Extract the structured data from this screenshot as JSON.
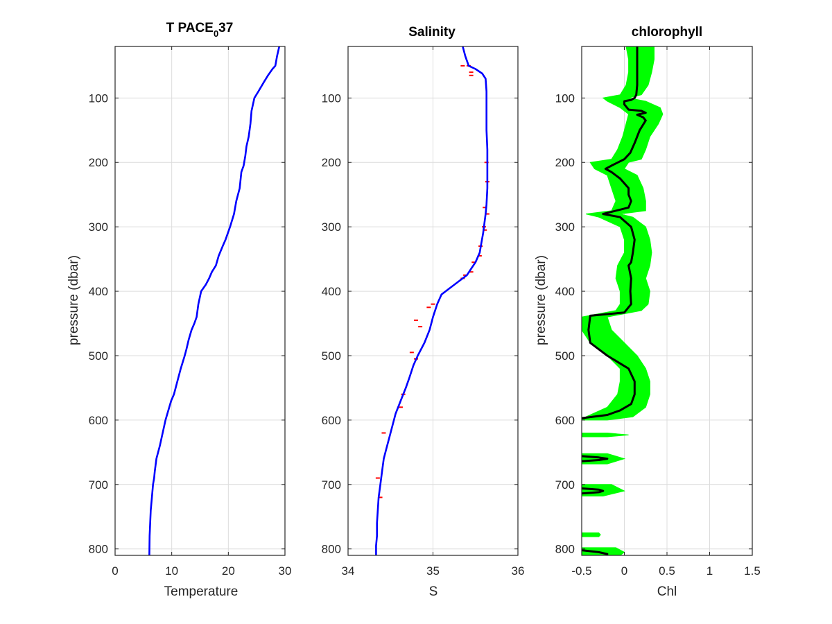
{
  "colors": {
    "profile": "#0000ff",
    "raw": "#00ff00",
    "spike": "#ff0000",
    "smoothed": "#000000",
    "grid": "#dcdcdc",
    "axis": "#262626"
  },
  "chart_data": [
    {
      "type": "line",
      "title_main": "T PACE",
      "title_sub": "0",
      "title_end": "37",
      "xlabel": "Temperature",
      "ylabel": "pressure (dbar)",
      "xlim": [
        0,
        30
      ],
      "ylim": [
        20,
        810
      ],
      "y_reversed": true,
      "grid": true,
      "xticks": [
        "0",
        "10",
        "20",
        "30"
      ],
      "yticks": [
        "100",
        "200",
        "300",
        "400",
        "500",
        "600",
        "700",
        "800"
      ],
      "series": [
        {
          "style": "line",
          "x": [
            29,
            28.6,
            28.3,
            27.8,
            27,
            26.3,
            25.3,
            24.6,
            24.1,
            23.9,
            23.6,
            23.2,
            23.0,
            22.7,
            22.3,
            22,
            21.4,
            21,
            20.3,
            19.5,
            19,
            18.3,
            17.8,
            17.1,
            16.6,
            16,
            15.2,
            14.7,
            14.4,
            14,
            13.5,
            13,
            12.6,
            12.3,
            11.6,
            11,
            10.4,
            9.9,
            9.4,
            8.9,
            8.4,
            7.9,
            7.3,
            7.0,
            6.9,
            6.7,
            6.5,
            6.3,
            6.2,
            6.1,
            6.05
          ],
          "y": [
            20,
            35,
            50,
            55,
            65,
            75,
            90,
            100,
            120,
            140,
            160,
            175,
            190,
            205,
            215,
            240,
            260,
            280,
            300,
            320,
            330,
            345,
            360,
            370,
            380,
            390,
            400,
            420,
            440,
            450,
            460,
            475,
            490,
            500,
            520,
            540,
            560,
            570,
            585,
            600,
            620,
            640,
            660,
            680,
            690,
            700,
            720,
            740,
            760,
            780,
            810
          ]
        }
      ]
    },
    {
      "type": "line",
      "title": "Salinity",
      "xlabel": "S",
      "ylabel": "",
      "xlim": [
        34,
        36
      ],
      "ylim": [
        20,
        810
      ],
      "y_reversed": true,
      "grid": true,
      "xticks": [
        "34",
        "35",
        "36"
      ],
      "yticks": [
        "100",
        "200",
        "300",
        "400",
        "500",
        "600",
        "700",
        "800"
      ],
      "series": [
        {
          "style": "spikes",
          "x": [
            35.35,
            35.42,
            35.45,
            35.45,
            35.63,
            35.64,
            35.61,
            35.64,
            35.6,
            35.61,
            35.56,
            35.55,
            35.48,
            35.45,
            35.38,
            35.35,
            35.0,
            34.95,
            34.8,
            34.85,
            34.75,
            34.8,
            34.65,
            34.62,
            34.42,
            34.35,
            34.38
          ],
          "y": [
            50,
            50,
            60,
            65,
            200,
            230,
            270,
            280,
            300,
            305,
            330,
            345,
            355,
            370,
            375,
            380,
            420,
            425,
            445,
            455,
            495,
            505,
            560,
            580,
            620,
            690,
            720
          ]
        },
        {
          "style": "line",
          "x": [
            35.35,
            35.38,
            35.42,
            35.5,
            35.58,
            35.62,
            35.63,
            35.63,
            35.63,
            35.64,
            35.64,
            35.64,
            35.63,
            35.62,
            35.6,
            35.59,
            35.57,
            35.55,
            35.5,
            35.45,
            35.4,
            35.3,
            35.2,
            35.1,
            35.05,
            35.0,
            34.96,
            34.9,
            34.82,
            34.77,
            34.72,
            34.68,
            34.62,
            34.56,
            34.52,
            34.48,
            34.45,
            34.42,
            34.4,
            34.38,
            34.36,
            34.35,
            34.34,
            34.34,
            34.33,
            34.33
          ],
          "y": [
            20,
            35,
            50,
            55,
            62,
            70,
            90,
            120,
            150,
            180,
            210,
            240,
            265,
            280,
            300,
            310,
            325,
            340,
            355,
            365,
            375,
            385,
            395,
            405,
            420,
            440,
            460,
            480,
            500,
            515,
            535,
            550,
            570,
            590,
            610,
            630,
            645,
            660,
            680,
            700,
            720,
            740,
            760,
            780,
            795,
            810
          ]
        }
      ]
    },
    {
      "type": "line",
      "title": "chlorophyll",
      "xlabel": "Chl",
      "ylabel": "pressure (dbar)",
      "xlim": [
        -0.5,
        1.5
      ],
      "ylim": [
        20,
        810
      ],
      "y_reversed": true,
      "grid": true,
      "xticks": [
        "-0.5",
        "0",
        "0.5",
        "1",
        "1.5"
      ],
      "yticks": [
        "100",
        "200",
        "300",
        "400",
        "500",
        "600",
        "700",
        "800"
      ],
      "series": [
        {
          "style": "band",
          "y": [
            20,
            40,
            60,
            80,
            95,
            100,
            105,
            115,
            125,
            140,
            160,
            180,
            195,
            200,
            210,
            220,
            240,
            260,
            275,
            280,
            285,
            300,
            320,
            340,
            360,
            380,
            400,
            420,
            430,
            440,
            460,
            480,
            500,
            520,
            540,
            560,
            580,
            595,
            600
          ],
          "x_low": [
            0.02,
            0.05,
            0.05,
            0.02,
            -0.05,
            -0.25,
            -0.2,
            -0.05,
            0.05,
            0.02,
            -0.02,
            -0.08,
            -0.15,
            -0.4,
            -0.35,
            -0.2,
            -0.15,
            -0.1,
            -0.15,
            -0.45,
            -0.3,
            -0.05,
            0.0,
            0.0,
            -0.08,
            -0.1,
            -0.05,
            -0.05,
            -0.1,
            -0.5,
            -0.5,
            -0.4,
            -0.2,
            -0.05,
            -0.05,
            -0.08,
            -0.2,
            -0.45,
            -0.5
          ],
          "x_high": [
            0.35,
            0.35,
            0.32,
            0.28,
            0.2,
            0.05,
            0.25,
            0.42,
            0.45,
            0.4,
            0.3,
            0.25,
            0.2,
            0.05,
            0.0,
            0.15,
            0.22,
            0.25,
            0.25,
            -0.05,
            0.1,
            0.25,
            0.3,
            0.32,
            0.3,
            0.25,
            0.3,
            0.28,
            0.2,
            -0.2,
            -0.15,
            0.0,
            0.15,
            0.25,
            0.3,
            0.3,
            0.25,
            0.1,
            -0.2
          ]
        },
        {
          "style": "band",
          "y": [
            620,
            623,
            626
          ],
          "x_low": [
            -0.5,
            -0.5,
            -0.5
          ],
          "x_high": [
            -0.2,
            0.05,
            -0.2
          ]
        },
        {
          "style": "band",
          "y": [
            652,
            660,
            668
          ],
          "x_low": [
            -0.5,
            -0.5,
            -0.5
          ],
          "x_high": [
            -0.2,
            0.0,
            -0.2
          ]
        },
        {
          "style": "band",
          "y": [
            700,
            710,
            718
          ],
          "x_low": [
            -0.5,
            -0.5,
            -0.5
          ],
          "x_high": [
            -0.15,
            0.0,
            -0.25
          ]
        },
        {
          "style": "band",
          "y": [
            775,
            778,
            781
          ],
          "x_low": [
            -0.5,
            -0.5,
            -0.5
          ],
          "x_high": [
            -0.3,
            -0.28,
            -0.3
          ]
        },
        {
          "style": "band",
          "y": [
            798,
            805,
            810
          ],
          "x_low": [
            -0.5,
            -0.5,
            -0.5
          ],
          "x_high": [
            -0.1,
            0.0,
            -0.05
          ]
        },
        {
          "style": "line",
          "x": [
            0.15,
            0.15,
            0.15,
            0.14,
            0.12,
            0.08,
            0.0,
            0.0,
            0.05,
            0.2,
            0.25,
            0.15,
            0.22,
            0.25,
            0.18,
            0.12,
            0.07,
            0.0,
            -0.15,
            -0.22,
            -0.15,
            -0.05,
            0.05,
            0.05,
            0.08,
            0.05,
            -0.25,
            -0.05,
            0.08,
            0.12,
            0.1,
            0.08,
            0.05,
            0.08,
            0.07,
            0.08,
            0.0,
            -0.4,
            -0.42,
            -0.4,
            -0.2,
            0.05,
            0.12,
            0.12,
            0.08,
            -0.05,
            -0.2,
            -0.5
          ],
          "y": [
            20,
            50,
            80,
            95,
            100,
            103,
            105,
            110,
            118,
            120,
            123,
            126,
            130,
            135,
            150,
            170,
            185,
            195,
            205,
            210,
            215,
            225,
            240,
            250,
            260,
            270,
            280,
            285,
            300,
            320,
            340,
            355,
            360,
            380,
            400,
            420,
            433,
            438,
            460,
            480,
            500,
            520,
            540,
            560,
            575,
            585,
            592,
            597
          ]
        },
        {
          "style": "loop",
          "x": [
            -0.5,
            -0.3,
            -0.2,
            -0.3,
            -0.5
          ],
          "y": [
            656,
            658,
            660,
            662,
            664
          ]
        },
        {
          "style": "loop",
          "x": [
            -0.5,
            -0.3,
            -0.25,
            -0.3,
            -0.5
          ],
          "y": [
            706,
            708,
            710,
            712,
            714
          ]
        },
        {
          "style": "line",
          "x": [
            -0.5,
            -0.3,
            -0.2
          ],
          "y": [
            802,
            805,
            808
          ]
        }
      ]
    }
  ]
}
